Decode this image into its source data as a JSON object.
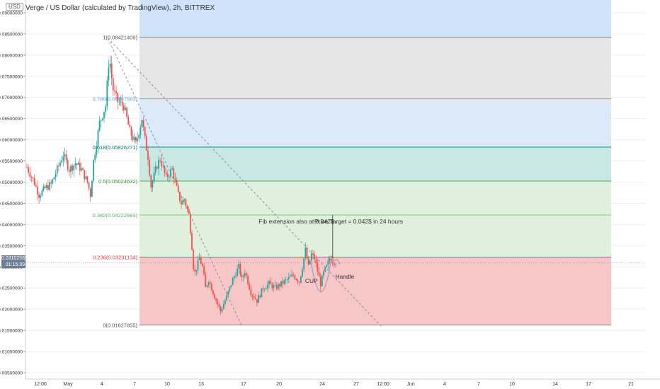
{
  "header": {
    "currency_badge": "USD",
    "title": "Verge / US Dollar (calculated by TradingView), 2h, BITTREX"
  },
  "price_tag": {
    "price": "0.03102569",
    "countdown": "01:15:39"
  },
  "colors": {
    "up": "#26a69a",
    "down": "#ef5350",
    "fib_0": "#e6e6e6",
    "fib_0236": "#f7c6c6",
    "fib_0382": "#dff1dd",
    "fib_05": "#dff1dd",
    "fib_0618": "#c9e8e4",
    "fib_0786": "#dbe9f9",
    "fib_1": "#e6e6e6",
    "fib_top": "#cfe4fa"
  },
  "chart_data": {
    "type": "candlestick",
    "title": "Verge / US Dollar (calculated by TradingView), 2h, BITTREX",
    "y_ticks": [
      "0.09000000",
      "0.08500000",
      "0.08000000",
      "0.07500000",
      "0.07000000",
      "0.06500000",
      "0.06000000",
      "0.05500000",
      "0.05000000",
      "0.04500000",
      "0.04000000",
      "0.03500000",
      "0.03000000",
      "0.02500000",
      "0.02000000",
      "0.01500000",
      "0.01000000",
      "0.00500000"
    ],
    "ylim": [
      0.0035,
      0.093
    ],
    "x_ticks": [
      "12:00",
      "May",
      "4",
      "7",
      "10",
      "13",
      "17",
      "20",
      "24",
      "27",
      "12:00",
      "Jun",
      "4",
      "7",
      "10",
      "14",
      "17",
      "21"
    ],
    "fib_levels": [
      {
        "label": "1(0.08421409)",
        "value": 0.08421409
      },
      {
        "label": "0.786(0.06967583)",
        "value": 0.06967583
      },
      {
        "label": "0.618(0.05826271)",
        "value": 0.05826271
      },
      {
        "label": "0.5(0.05024632)",
        "value": 0.05024632
      },
      {
        "label": "0.382(0.04222993)",
        "value": 0.04222993
      },
      {
        "label": "0.236(0.03231134)",
        "value": 0.03231134
      },
      {
        "label": "0(0.01627855)",
        "value": 0.01627855
      }
    ],
    "price_path": [
      [
        0,
        0.0535
      ],
      [
        1.2,
        0.05
      ],
      [
        2,
        0.047
      ],
      [
        3,
        0.0485
      ],
      [
        4,
        0.0495
      ],
      [
        5,
        0.053
      ],
      [
        6,
        0.0565
      ],
      [
        7,
        0.053
      ],
      [
        8,
        0.0545
      ],
      [
        9,
        0.053
      ],
      [
        10,
        0.05
      ],
      [
        10.5,
        0.047
      ],
      [
        11,
        0.055
      ],
      [
        12,
        0.064
      ],
      [
        13,
        0.068
      ],
      [
        13.6,
        0.08
      ],
      [
        14.2,
        0.072
      ],
      [
        15,
        0.069
      ],
      [
        16,
        0.068
      ],
      [
        17,
        0.062
      ],
      [
        18,
        0.059
      ],
      [
        19,
        0.065
      ],
      [
        19.5,
        0.06
      ],
      [
        20,
        0.056
      ],
      [
        20.5,
        0.049
      ],
      [
        21.5,
        0.054
      ],
      [
        22,
        0.0555
      ],
      [
        23,
        0.051
      ],
      [
        24,
        0.053
      ],
      [
        25,
        0.047
      ],
      [
        25.5,
        0.045
      ],
      [
        26,
        0.046
      ],
      [
        26.8,
        0.042
      ],
      [
        27.3,
        0.034
      ],
      [
        27.6,
        0.028
      ],
      [
        28.5,
        0.032
      ],
      [
        29,
        0.03
      ],
      [
        29.5,
        0.025
      ],
      [
        30,
        0.027
      ],
      [
        31,
        0.023
      ],
      [
        32,
        0.0195
      ],
      [
        33,
        0.023
      ],
      [
        34,
        0.027
      ],
      [
        35,
        0.03
      ],
      [
        35.5,
        0.027
      ],
      [
        36,
        0.029
      ],
      [
        37,
        0.024
      ],
      [
        38,
        0.022
      ],
      [
        39,
        0.025
      ],
      [
        40,
        0.026
      ],
      [
        41,
        0.025
      ],
      [
        42,
        0.026
      ],
      [
        43,
        0.027
      ],
      [
        44,
        0.028
      ],
      [
        45,
        0.0265
      ],
      [
        45.5,
        0.03
      ],
      [
        46,
        0.034
      ],
      [
        46.5,
        0.03
      ],
      [
        47,
        0.033
      ],
      [
        47.5,
        0.032
      ],
      [
        48,
        0.029
      ],
      [
        48.5,
        0.026
      ],
      [
        49,
        0.0285
      ],
      [
        49.5,
        0.03
      ],
      [
        50,
        0.032
      ],
      [
        50.5,
        0.0315
      ],
      [
        51,
        0.031
      ]
    ],
    "trendlines": [
      {
        "name": "upper",
        "from": [
          13.6,
          0.084
        ],
        "to": [
          58.5,
          0.016
        ]
      },
      {
        "name": "lower",
        "from": [
          13.6,
          0.084
        ],
        "to": [
          35.5,
          0.016
        ]
      }
    ],
    "annotations": [
      {
        "text": "Fib extension also at 0.042$",
        "x": 44.5,
        "y": 0.0402
      },
      {
        "text": "Price Target = 0.042$ in 24 hours",
        "x": 54.8,
        "y": 0.0402
      },
      {
        "text": "CUP",
        "x": 47.0,
        "y": 0.0262
      },
      {
        "text": "Handle",
        "x": 52.5,
        "y": 0.0272
      }
    ]
  }
}
